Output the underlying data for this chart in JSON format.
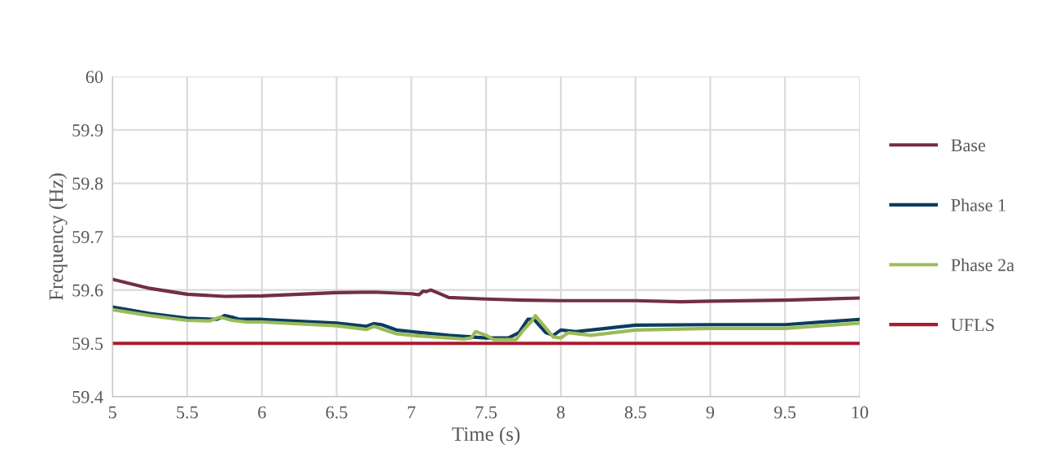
{
  "chart_data": {
    "type": "line",
    "xlabel": "Time (s)",
    "ylabel": "Frequency (Hz)",
    "xlim": [
      5,
      10
    ],
    "xticks": [
      5,
      5.5,
      6,
      6.5,
      7,
      7.5,
      8,
      8.5,
      9,
      9.5,
      10
    ],
    "ylim": [
      59.4,
      60
    ],
    "yticks": [
      59.4,
      59.5,
      59.6,
      59.7,
      59.8,
      59.9,
      60
    ],
    "grid": true,
    "legend": "right",
    "marker": "none",
    "line_style": "solid",
    "series": [
      {
        "name": "Base",
        "color": "#722f44",
        "x": [
          5,
          5.25,
          5.5,
          5.75,
          6,
          6.25,
          6.5,
          6.75,
          7,
          7.05,
          7.08,
          7.1,
          7.13,
          7.2,
          7.25,
          7.5,
          7.75,
          8,
          8.5,
          8.8,
          9,
          9.5,
          10
        ],
        "values": [
          59.62,
          59.603,
          59.592,
          59.588,
          59.589,
          59.592,
          59.595,
          59.596,
          59.593,
          59.591,
          59.598,
          59.597,
          59.6,
          59.592,
          59.586,
          59.583,
          59.581,
          59.58,
          59.58,
          59.578,
          59.579,
          59.581,
          59.585
        ]
      },
      {
        "name": "Phase 1",
        "color": "#0b3d5e",
        "x": [
          5,
          5.25,
          5.5,
          5.7,
          5.75,
          5.8,
          5.85,
          6,
          6.5,
          6.7,
          6.75,
          6.8,
          6.9,
          7,
          7.25,
          7.5,
          7.65,
          7.72,
          7.78,
          7.82,
          7.9,
          7.95,
          8,
          8.1,
          8.2,
          8.5,
          9,
          9.5,
          10
        ],
        "values": [
          59.568,
          59.556,
          59.547,
          59.545,
          59.552,
          59.549,
          59.545,
          59.545,
          59.538,
          59.532,
          59.537,
          59.535,
          59.525,
          59.522,
          59.515,
          59.51,
          59.51,
          59.52,
          59.545,
          59.545,
          59.52,
          59.515,
          59.525,
          59.522,
          59.525,
          59.534,
          59.535,
          59.535,
          59.545
        ]
      },
      {
        "name": "Phase 2a",
        "color": "#9bbb59",
        "x": [
          5,
          5.25,
          5.5,
          5.65,
          5.72,
          5.8,
          5.9,
          6,
          6.5,
          6.7,
          6.75,
          6.8,
          6.9,
          7,
          7.25,
          7.35,
          7.4,
          7.43,
          7.5,
          7.55,
          7.7,
          7.75,
          7.8,
          7.83,
          7.88,
          7.95,
          8,
          8.05,
          8.2,
          8.5,
          9,
          9.5,
          10
        ],
        "values": [
          59.563,
          59.552,
          59.543,
          59.542,
          59.549,
          59.543,
          59.54,
          59.54,
          59.533,
          59.526,
          59.532,
          59.527,
          59.518,
          59.515,
          59.51,
          59.508,
          59.51,
          59.522,
          59.515,
          59.507,
          59.507,
          59.525,
          59.54,
          59.552,
          59.535,
          59.512,
          59.51,
          59.52,
          59.515,
          59.525,
          59.528,
          59.528,
          59.538
        ]
      },
      {
        "name": "UFLS",
        "color": "#a91b30",
        "x": [
          5,
          10
        ],
        "values": [
          59.5,
          59.5
        ]
      }
    ]
  }
}
